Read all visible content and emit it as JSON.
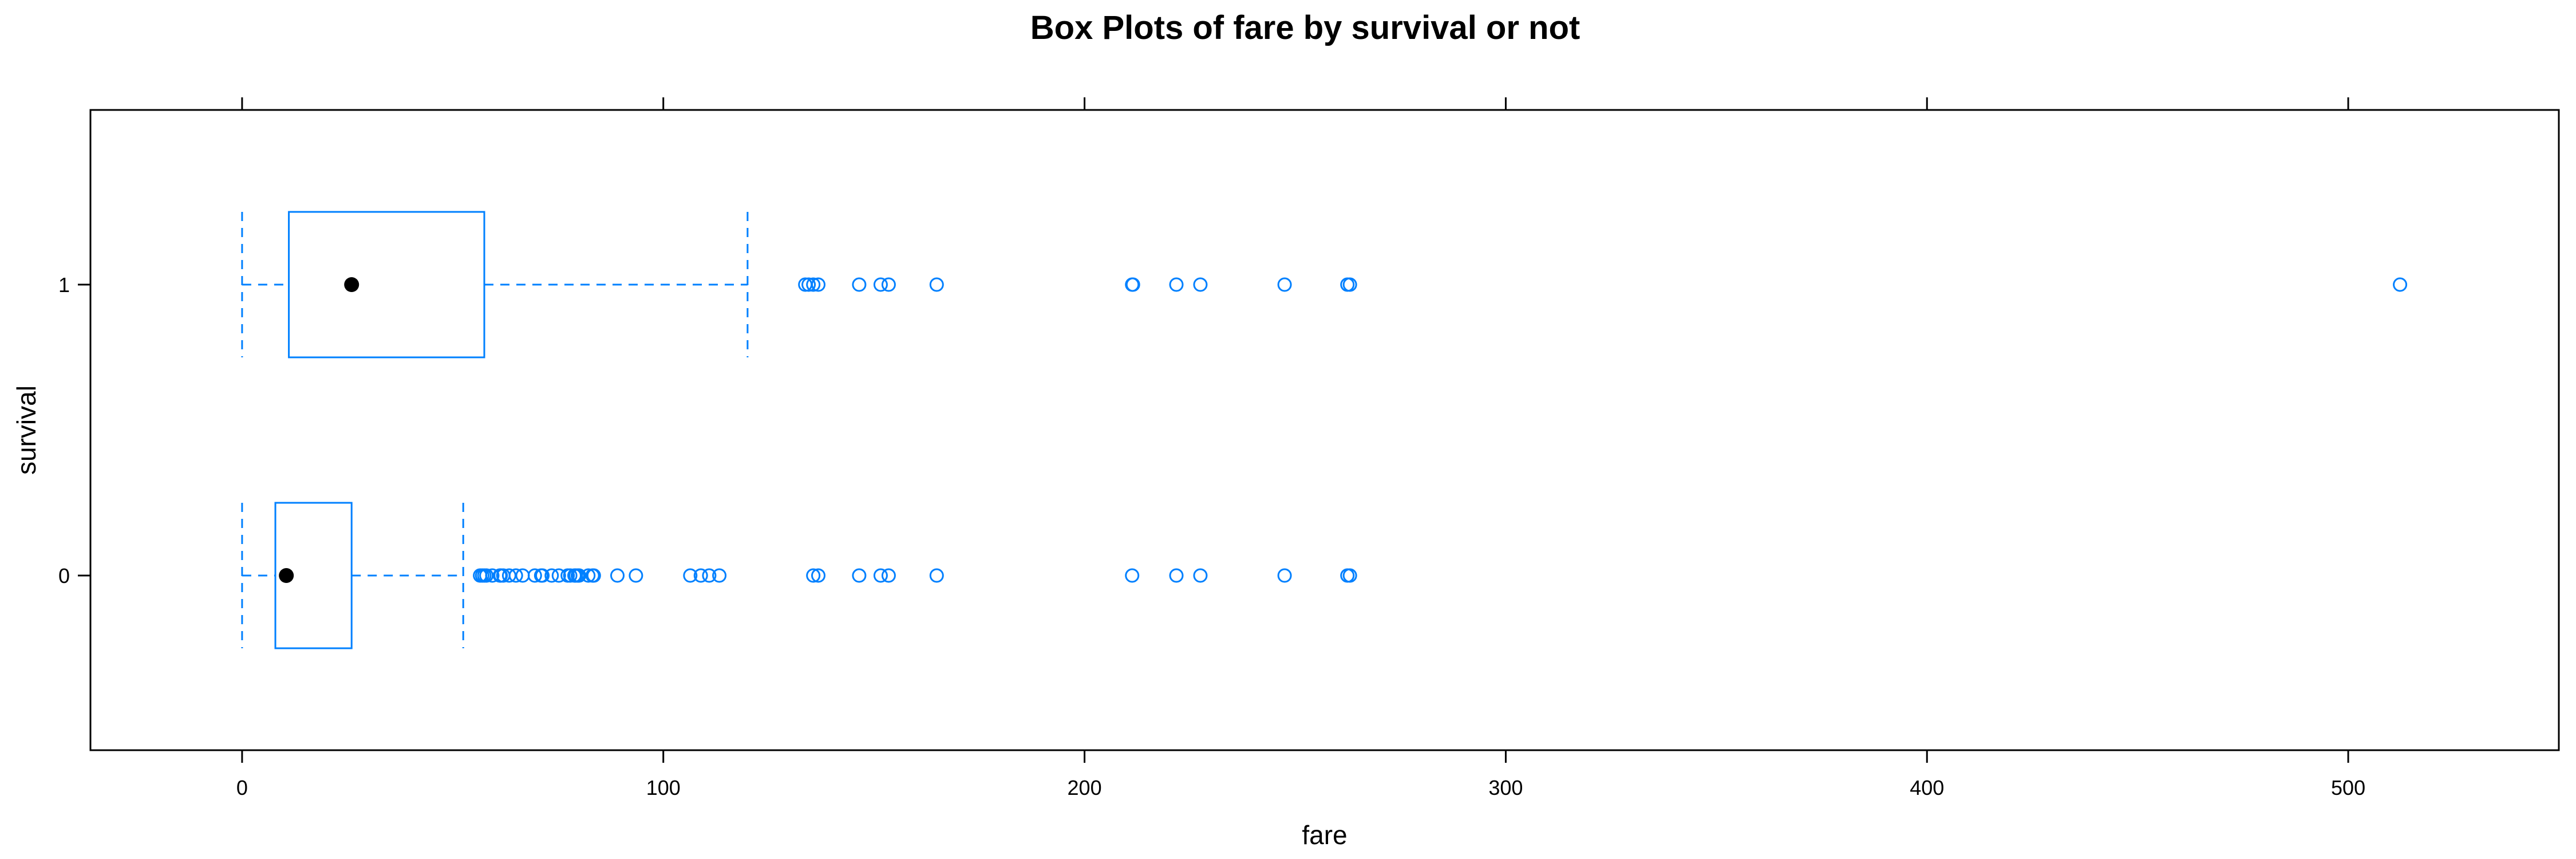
{
  "chart_data": {
    "type": "boxplot",
    "title": "Box Plots of fare by survival or not",
    "xlabel": "fare",
    "ylabel": "survival",
    "xlim": [
      -36,
      550
    ],
    "xticks": [
      0,
      100,
      200,
      300,
      400,
      500
    ],
    "categories": [
      "0",
      "1"
    ],
    "grid": false,
    "colors": {
      "box": "#0080ff",
      "median": "#000000",
      "frame": "#000000"
    },
    "groups": [
      {
        "category": "0",
        "whisker_low": 0,
        "q1": 7.9,
        "median": 10.5,
        "q3": 26.0,
        "whisker_high": 52.5,
        "outliers": [
          56.5,
          57,
          57.5,
          58,
          59.4,
          61.2,
          61.4,
          62,
          63.4,
          65,
          66.6,
          69.5,
          71,
          71.3,
          73.5,
          75.2,
          77.3,
          77.9,
          78.9,
          79.2,
          79.7,
          80,
          82.2,
          83.2,
          83.5,
          89.1,
          93.5,
          106.4,
          108.9,
          110.9,
          113.3,
          135.6,
          136.8,
          146.5,
          151.6,
          153.5,
          164.9,
          211.3,
          221.8,
          227.5,
          247.5,
          262.4,
          263
        ]
      },
      {
        "category": "1",
        "whisker_low": 0,
        "q1": 11.1,
        "median": 26.0,
        "q3": 57.5,
        "whisker_high": 120.0,
        "outliers": [
          133.7,
          134.5,
          135.6,
          136.8,
          146.5,
          151.6,
          153.5,
          164.9,
          211.3,
          211.5,
          221.8,
          227.5,
          247.5,
          262.4,
          263,
          512.3
        ]
      }
    ]
  }
}
